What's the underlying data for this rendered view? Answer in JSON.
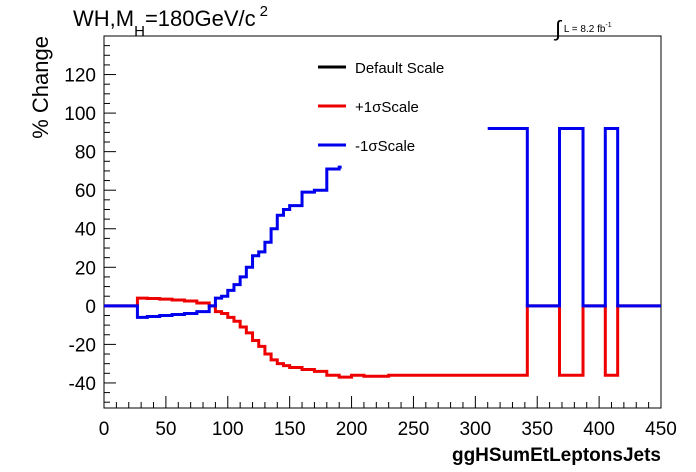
{
  "title": {
    "main": "WH,M",
    "subscript": "H",
    "rest": "=180GeV/c",
    "superscript": "2"
  },
  "lumi": {
    "integral": "∫",
    "text": "L = 8.2 fb",
    "superscript": "-1"
  },
  "colors": {
    "default": "#000000",
    "plus": "#ee0000",
    "minus": "#0000ee"
  },
  "chart_data": {
    "type": "line",
    "xlabel": "ggHSumEtLeptonsJets",
    "ylabel": "% Change",
    "xlim": [
      0,
      450
    ],
    "ylim": [
      -53,
      140
    ],
    "xticks": [
      "0",
      "50",
      "100",
      "150",
      "200",
      "250",
      "300",
      "350",
      "400",
      "450"
    ],
    "yticks": [
      "-40",
      "-20",
      "0",
      "20",
      "40",
      "60",
      "80",
      "100",
      "120"
    ],
    "grid": false,
    "legend_position": "top-center",
    "legend": [
      "Default Scale",
      "+1σScale",
      "-1σScale"
    ],
    "series": [
      {
        "name": "+1σScale",
        "steps": [
          [
            0,
            27,
            0
          ],
          [
            27,
            35,
            4
          ],
          [
            35,
            45,
            3.8
          ],
          [
            45,
            55,
            3.5
          ],
          [
            55,
            65,
            3
          ],
          [
            65,
            75,
            2.5
          ],
          [
            75,
            85,
            1.5
          ],
          [
            85,
            90,
            0
          ],
          [
            90,
            95,
            -3
          ],
          [
            95,
            100,
            -4
          ],
          [
            100,
            105,
            -6
          ],
          [
            105,
            110,
            -8
          ],
          [
            110,
            115,
            -11
          ],
          [
            115,
            120,
            -14
          ],
          [
            120,
            125,
            -18
          ],
          [
            125,
            130,
            -21
          ],
          [
            130,
            135,
            -25
          ],
          [
            135,
            140,
            -28
          ],
          [
            140,
            145,
            -30
          ],
          [
            145,
            150,
            -31
          ],
          [
            150,
            160,
            -32
          ],
          [
            160,
            170,
            -33
          ],
          [
            170,
            180,
            -34
          ],
          [
            180,
            190,
            -36
          ],
          [
            190,
            200,
            -37
          ],
          [
            200,
            210,
            -36
          ],
          [
            210,
            230,
            -36.5
          ],
          [
            230,
            342,
            -36
          ],
          [
            342,
            368,
            0
          ],
          [
            368,
            387,
            -36
          ],
          [
            387,
            405,
            0
          ],
          [
            405,
            415,
            -36
          ],
          [
            415,
            450,
            0
          ]
        ]
      },
      {
        "name": "-1σScale",
        "steps": [
          [
            0,
            27,
            0
          ],
          [
            27,
            35,
            -6
          ],
          [
            35,
            45,
            -5.5
          ],
          [
            45,
            55,
            -5
          ],
          [
            55,
            65,
            -4.5
          ],
          [
            65,
            75,
            -4
          ],
          [
            75,
            85,
            -3
          ],
          [
            85,
            90,
            0
          ],
          [
            90,
            95,
            4
          ],
          [
            95,
            100,
            5
          ],
          [
            100,
            105,
            8
          ],
          [
            105,
            110,
            11
          ],
          [
            110,
            115,
            15
          ],
          [
            115,
            120,
            20
          ],
          [
            120,
            125,
            26
          ],
          [
            125,
            130,
            28
          ],
          [
            130,
            135,
            33
          ],
          [
            135,
            140,
            40
          ],
          [
            140,
            145,
            47
          ],
          [
            145,
            150,
            50
          ],
          [
            150,
            160,
            52
          ],
          [
            160,
            170,
            59
          ],
          [
            170,
            180,
            60
          ],
          [
            180,
            190,
            71
          ],
          [
            190,
            192,
            72
          ],
          [
            310,
            342,
            92
          ],
          [
            342,
            368,
            0
          ],
          [
            368,
            387,
            92
          ],
          [
            387,
            405,
            0
          ],
          [
            405,
            415,
            92
          ],
          [
            415,
            450,
            0
          ]
        ]
      }
    ]
  }
}
